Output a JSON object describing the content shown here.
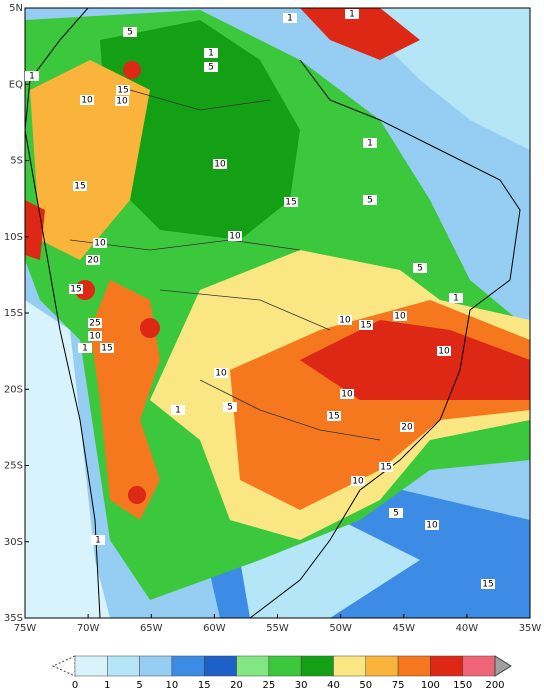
{
  "map": {
    "lat_labels": [
      "5N",
      "EQ",
      "5S",
      "10S",
      "15S",
      "20S",
      "25S",
      "30S",
      "35S"
    ],
    "lon_labels": [
      "75W",
      "70W",
      "65W",
      "60W",
      "55W",
      "50W",
      "45W",
      "40W",
      "35W"
    ],
    "contour_labels": [
      "1",
      "1",
      "5",
      "1",
      "5",
      "1",
      "15",
      "10",
      "10",
      "1",
      "10",
      "15",
      "15",
      "5",
      "10",
      "10",
      "20",
      "5",
      "15",
      "1",
      "10",
      "15",
      "10",
      "25",
      "10",
      "15",
      "1",
      "10",
      "10",
      "10",
      "1",
      "5",
      "15",
      "20",
      "15",
      "10",
      "5",
      "10",
      "1",
      "15"
    ]
  },
  "colorbar": {
    "labels": [
      "0",
      "1",
      "5",
      "10",
      "15",
      "20",
      "25",
      "30",
      "40",
      "50",
      "75",
      "100",
      "150",
      "200"
    ],
    "colors": [
      "#d8f3fb",
      "#b4e6f7",
      "#96cdf2",
      "#3c8ce6",
      "#1e5fc8",
      "#82e682",
      "#3cc83c",
      "#14a014",
      "#fae682",
      "#fab43c",
      "#f5781e",
      "#dc2814",
      "#f06478"
    ],
    "under_color": "#ffffff",
    "over_color": "#a0a0a0"
  }
}
